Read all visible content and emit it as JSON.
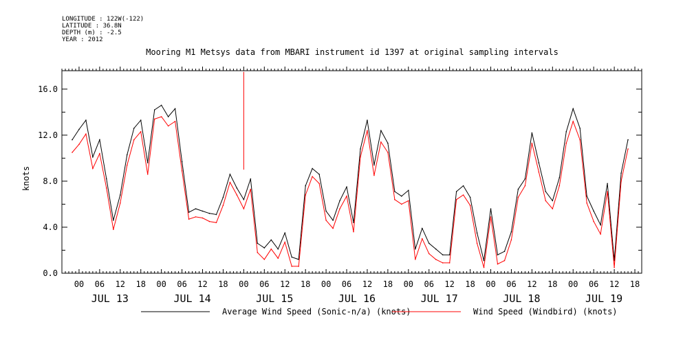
{
  "meta": {
    "longitude": "LONGITUDE : 122W(-122)",
    "latitude": "LATITUDE : 36.8N",
    "depth": "DEPTH (m) : -2.5",
    "year": "YEAR : 2012"
  },
  "chart_data": {
    "type": "line",
    "title": "Mooring M1 Metsys data from MBARI instrument id 1397 at original sampling intervals",
    "ylabel": "knots",
    "xlabel": "",
    "ylim": [
      0,
      17.6
    ],
    "yticks": [
      0.0,
      4.0,
      8.0,
      12.0,
      16.0
    ],
    "ytick_labels": [
      "0.0",
      "4.0",
      "8.0",
      "12.0",
      "16.0"
    ],
    "x_unit": "hours since JUL 13 00:00 (2012)",
    "xlim": [
      -5,
      164
    ],
    "hour_tick_labels": [
      "00",
      "06",
      "12",
      "18"
    ],
    "day_labels": [
      "JUL 13",
      "JUL 14",
      "JUL 15",
      "JUL 16",
      "JUL 17",
      "JUL 18",
      "JUL 19"
    ],
    "grid": false,
    "legend_position": "bottom",
    "series": [
      {
        "name": "Average Wind Speed (Sonic-n/a) (knots)",
        "color": "#000000",
        "x": [
          -2,
          0,
          2,
          4,
          6,
          8,
          10,
          12,
          14,
          16,
          18,
          20,
          22,
          24,
          26,
          28,
          30,
          32,
          34,
          36,
          38,
          40,
          42,
          44,
          46,
          48,
          50,
          52,
          54,
          56,
          58,
          60,
          62,
          64,
          66,
          68,
          70,
          72,
          74,
          76,
          78,
          80,
          82,
          84,
          86,
          88,
          90,
          92,
          94,
          96,
          98,
          100,
          102,
          104,
          106,
          108,
          110,
          112,
          114,
          116,
          118,
          120,
          122,
          124,
          126,
          128,
          130,
          132,
          134,
          136,
          138,
          140,
          142,
          144,
          146,
          148,
          150,
          152,
          154,
          156,
          158,
          160
        ],
        "values": [
          11.6,
          12.5,
          13.3,
          10.1,
          11.6,
          8.2,
          4.6,
          6.8,
          10.3,
          12.6,
          13.3,
          9.6,
          14.2,
          14.6,
          13.6,
          14.3,
          9.7,
          5.3,
          5.6,
          5.4,
          5.2,
          5.1,
          6.6,
          8.6,
          7.4,
          6.4,
          8.2,
          2.6,
          2.2,
          2.9,
          2.1,
          3.5,
          1.4,
          1.2,
          7.6,
          9.1,
          8.6,
          5.4,
          4.6,
          6.3,
          7.5,
          4.4,
          10.8,
          13.3,
          9.4,
          12.4,
          11.3,
          7.1,
          6.7,
          7.2,
          2.1,
          3.9,
          2.6,
          2.1,
          1.6,
          1.6,
          7.1,
          7.6,
          6.6,
          3.5,
          1.1,
          5.6,
          1.6,
          1.9,
          3.6,
          7.3,
          8.2,
          12.2,
          9.6,
          7.1,
          6.3,
          8.3,
          12.3,
          14.3,
          12.6,
          6.7,
          5.4,
          4.2,
          7.8,
          1.1,
          8.7,
          11.6
        ]
      },
      {
        "name": "Wind Speed (Windbird) (knots)",
        "color": "#ff0000",
        "x": [
          -2,
          0,
          2,
          4,
          6,
          8,
          10,
          12,
          14,
          16,
          18,
          20,
          22,
          24,
          26,
          28,
          30,
          32,
          34,
          36,
          38,
          40,
          42,
          44,
          46,
          48,
          50,
          52,
          54,
          56,
          58,
          60,
          62,
          64,
          66,
          68,
          70,
          72,
          74,
          76,
          78,
          80,
          82,
          84,
          86,
          88,
          90,
          92,
          94,
          96,
          98,
          100,
          102,
          104,
          106,
          108,
          110,
          112,
          114,
          116,
          118,
          120,
          122,
          124,
          126,
          128,
          130,
          132,
          134,
          136,
          138,
          140,
          142,
          144,
          146,
          148,
          150,
          152,
          154,
          156,
          158,
          160
        ],
        "values": [
          10.5,
          11.2,
          12.1,
          9.1,
          10.4,
          7.4,
          3.8,
          6.1,
          9.4,
          11.6,
          12.3,
          8.6,
          13.4,
          13.6,
          12.8,
          13.2,
          8.9,
          4.7,
          4.9,
          4.8,
          4.5,
          4.4,
          5.9,
          7.9,
          6.8,
          5.6,
          7.3,
          1.8,
          1.2,
          2.1,
          1.3,
          2.7,
          0.6,
          0.6,
          6.8,
          8.4,
          7.8,
          4.6,
          3.9,
          5.6,
          6.7,
          3.6,
          10.1,
          12.4,
          8.5,
          11.4,
          10.5,
          6.4,
          6.0,
          6.3,
          1.2,
          3.0,
          1.7,
          1.2,
          0.9,
          0.9,
          6.4,
          6.8,
          5.9,
          2.6,
          0.5,
          4.9,
          0.8,
          1.1,
          2.9,
          6.6,
          7.6,
          11.3,
          8.8,
          6.3,
          5.6,
          7.6,
          11.3,
          13.2,
          11.6,
          6.1,
          4.5,
          3.4,
          7.1,
          0.5,
          8.0,
          10.8
        ]
      }
    ],
    "annotations": [
      {
        "x": 48,
        "y": 17.5,
        "series": "Wind Speed (Windbird) (knots)",
        "note": "spike"
      }
    ]
  }
}
